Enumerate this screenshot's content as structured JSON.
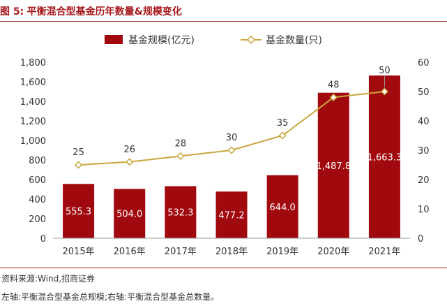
{
  "caption": {
    "prefix": "图 5:",
    "title": "平衡混合型基金历年数量&规模变化"
  },
  "footer": {
    "source": "资料来源:Wind,招商证券",
    "note": "左轴:平衡混合型基金总规模;右轴:平衡混合型基金总数量。"
  },
  "colors": {
    "bar": "#a0090e",
    "line": "#c9a53c",
    "accent": "#a6191d"
  },
  "chart_data": {
    "type": "bar",
    "categories": [
      "2015年",
      "2016年",
      "2017年",
      "2018年",
      "2019年",
      "2020年",
      "2021年"
    ],
    "series": [
      {
        "name": "基金规模(亿元)",
        "type": "bar",
        "axis": "left",
        "values": [
          555.3,
          504.0,
          532.3,
          477.2,
          644.0,
          1487.8,
          1663.3
        ],
        "labels": [
          "555.3",
          "504.0",
          "532.3",
          "477.2",
          "644.0",
          "1,487.8",
          "1,663.3"
        ]
      },
      {
        "name": "基金数量(只)",
        "type": "line",
        "axis": "right",
        "values": [
          25,
          26,
          28,
          30,
          35,
          48,
          50
        ],
        "labels": [
          "25",
          "26",
          "28",
          "30",
          "35",
          "48",
          "50"
        ]
      }
    ],
    "y_left": {
      "range": [
        0,
        1800
      ],
      "ticks": [
        "0",
        "200",
        "400",
        "600",
        "800",
        "1,000",
        "1,200",
        "1,400",
        "1,600",
        "1,800"
      ]
    },
    "y_right": {
      "range": [
        0,
        60
      ],
      "ticks": [
        "0",
        "10",
        "20",
        "30",
        "40",
        "50",
        "60"
      ]
    },
    "legend_position": "top-center",
    "grid": false
  }
}
